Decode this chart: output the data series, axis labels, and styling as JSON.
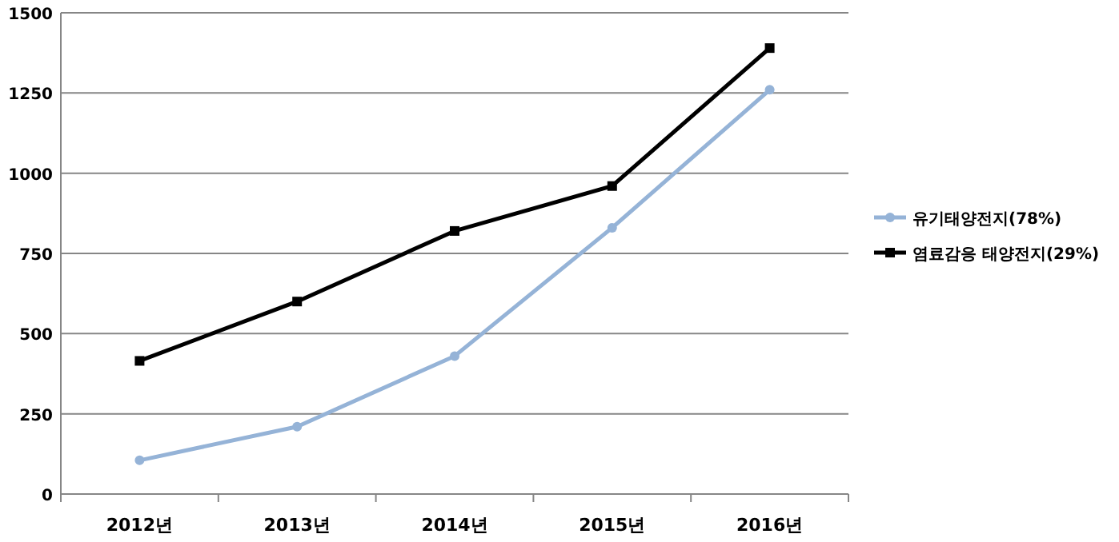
{
  "chart_data": {
    "type": "line",
    "categories": [
      "2012년",
      "2013년",
      "2014년",
      "2015년",
      "2016년"
    ],
    "ylim": [
      0,
      1500
    ],
    "yticks": [
      0,
      250,
      500,
      750,
      1000,
      1250,
      1500
    ],
    "grid": "y",
    "legend": "right",
    "series": [
      {
        "name": "유기태양전지(78%)",
        "color": "#95b3d7",
        "marker": "circle",
        "values": [
          105,
          210,
          430,
          830,
          1260
        ]
      },
      {
        "name": "염료감응 태양전지(29%)",
        "color": "#000000",
        "marker": "square",
        "values": [
          415,
          600,
          820,
          960,
          1390
        ]
      }
    ]
  }
}
